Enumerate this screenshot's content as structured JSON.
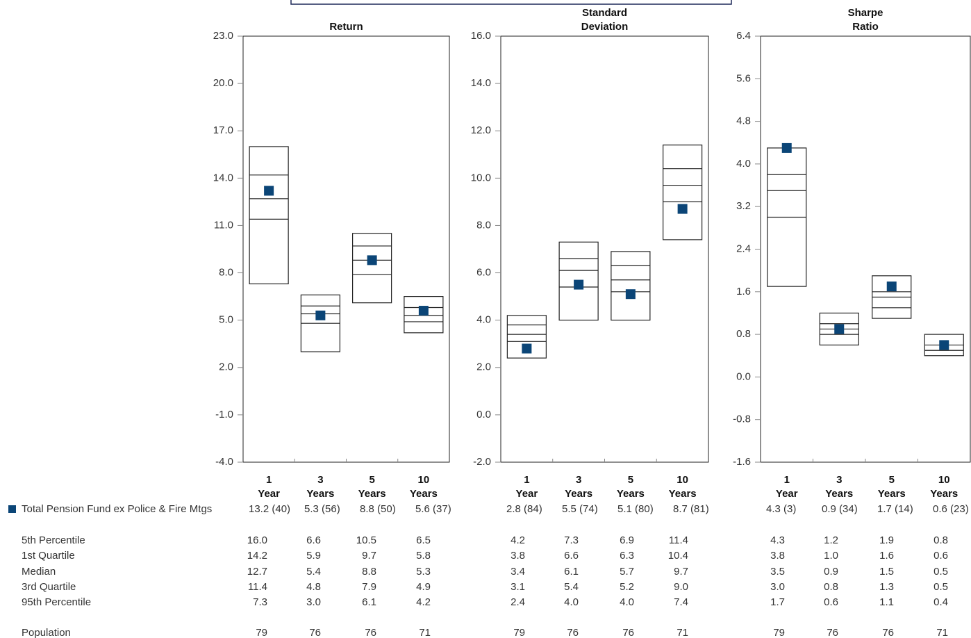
{
  "rows": {
    "fund": "Total Pension Fund ex Police & Fire Mtgs",
    "percentiles": [
      "5th Percentile",
      "1st Quartile",
      "Median",
      "3rd Quartile",
      "95th Percentile"
    ],
    "population": "Population"
  },
  "chart_data": [
    {
      "type": "box",
      "title": "Return",
      "categories": [
        "1 Year",
        "3 Years",
        "5 Years",
        "10 Years"
      ],
      "ylim": [
        -4,
        23
      ],
      "yticks": [
        {
          "value": 23,
          "label": "23.0"
        },
        {
          "value": 20,
          "label": "20.0"
        },
        {
          "value": 17,
          "label": "17.0"
        },
        {
          "value": 14,
          "label": "14.0"
        },
        {
          "value": 11,
          "label": "11.0"
        },
        {
          "value": 8,
          "label": "8.0"
        },
        {
          "value": 5,
          "label": "5.0"
        },
        {
          "value": 2,
          "label": "2.0"
        },
        {
          "value": -1,
          "label": "-1.0"
        },
        {
          "value": -4,
          "label": "-4.0"
        }
      ],
      "series": [
        {
          "values": [
            16.0,
            6.6,
            10.5,
            6.5
          ],
          "value_labels": [
            "16.0",
            "6.6",
            "10.5",
            "6.5"
          ]
        },
        {
          "values": [
            14.2,
            5.9,
            9.7,
            5.8
          ],
          "value_labels": [
            "14.2",
            "5.9",
            "9.7",
            "5.8"
          ]
        },
        {
          "values": [
            12.7,
            5.4,
            8.8,
            5.3
          ],
          "value_labels": [
            "12.7",
            "5.4",
            "8.8",
            "5.3"
          ]
        },
        {
          "values": [
            11.4,
            4.8,
            7.9,
            4.9
          ],
          "value_labels": [
            "11.4",
            "4.8",
            "7.9",
            "4.9"
          ]
        },
        {
          "values": [
            7.3,
            3.0,
            6.1,
            4.2
          ],
          "value_labels": [
            "7.3",
            "3.0",
            "6.1",
            "4.2"
          ]
        }
      ],
      "fund": {
        "color": "#0b4577",
        "values": [
          13.2,
          5.3,
          8.8,
          5.6
        ],
        "value_labels": [
          "13.2 (40)",
          "5.3 (56)",
          "8.8 (50)",
          "5.6 (37)"
        ]
      },
      "population": [
        79,
        76,
        76,
        71
      ]
    },
    {
      "type": "box",
      "title": "Standard Deviation",
      "categories": [
        "1 Year",
        "3 Years",
        "5 Years",
        "10 Years"
      ],
      "ylim": [
        -2,
        16
      ],
      "yticks": [
        {
          "value": 16,
          "label": "16.0"
        },
        {
          "value": 14,
          "label": "14.0"
        },
        {
          "value": 12,
          "label": "12.0"
        },
        {
          "value": 10,
          "label": "10.0"
        },
        {
          "value": 8,
          "label": "8.0"
        },
        {
          "value": 6,
          "label": "6.0"
        },
        {
          "value": 4,
          "label": "4.0"
        },
        {
          "value": 2,
          "label": "2.0"
        },
        {
          "value": 0,
          "label": "0.0"
        },
        {
          "value": -2,
          "label": "-2.0"
        }
      ],
      "series": [
        {
          "values": [
            4.2,
            7.3,
            6.9,
            11.4
          ],
          "value_labels": [
            "4.2",
            "7.3",
            "6.9",
            "11.4"
          ]
        },
        {
          "values": [
            3.8,
            6.6,
            6.3,
            10.4
          ],
          "value_labels": [
            "3.8",
            "6.6",
            "6.3",
            "10.4"
          ]
        },
        {
          "values": [
            3.4,
            6.1,
            5.7,
            9.7
          ],
          "value_labels": [
            "3.4",
            "6.1",
            "5.7",
            "9.7"
          ]
        },
        {
          "values": [
            3.1,
            5.4,
            5.2,
            9.0
          ],
          "value_labels": [
            "3.1",
            "5.4",
            "5.2",
            "9.0"
          ]
        },
        {
          "values": [
            2.4,
            4.0,
            4.0,
            7.4
          ],
          "value_labels": [
            "2.4",
            "4.0",
            "4.0",
            "7.4"
          ]
        }
      ],
      "fund": {
        "color": "#0b4577",
        "values": [
          2.8,
          5.5,
          5.1,
          8.7
        ],
        "value_labels": [
          "2.8 (84)",
          "5.5 (74)",
          "5.1 (80)",
          "8.7 (81)"
        ]
      },
      "population": [
        79,
        76,
        76,
        71
      ]
    },
    {
      "type": "box",
      "title": "Sharpe Ratio",
      "categories": [
        "1 Year",
        "3 Years",
        "5 Years",
        "10 Years"
      ],
      "ylim": [
        -1.6,
        6.4
      ],
      "yticks": [
        6.4,
        5.6,
        4.8,
        {
          "value": 4,
          "label": "4.0"
        },
        3.2,
        2.4,
        1.6,
        0.8,
        {
          "value": 0,
          "label": "0.0"
        },
        -0.8,
        -1.6
      ],
      "series": [
        {
          "values": [
            4.3,
            1.2,
            1.9,
            0.8
          ],
          "value_labels": [
            "4.3",
            "1.2",
            "1.9",
            "0.8"
          ]
        },
        {
          "values": [
            3.8,
            1.0,
            1.6,
            0.6
          ],
          "value_labels": [
            "3.8",
            "1.0",
            "1.6",
            "0.6"
          ]
        },
        {
          "values": [
            3.5,
            0.9,
            1.5,
            0.5
          ],
          "value_labels": [
            "3.5",
            "0.9",
            "1.5",
            "0.5"
          ]
        },
        {
          "values": [
            3.0,
            0.8,
            1.3,
            0.5
          ],
          "value_labels": [
            "3.0",
            "0.8",
            "1.3",
            "0.5"
          ]
        },
        {
          "values": [
            1.7,
            0.6,
            1.1,
            0.4
          ],
          "value_labels": [
            "1.7",
            "0.6",
            "1.1",
            "0.4"
          ]
        }
      ],
      "fund": {
        "color": "#0b4577",
        "values": [
          4.3,
          0.9,
          1.7,
          0.6
        ],
        "value_labels": [
          "4.3 (3)",
          "0.9 (34)",
          "1.7 (14)",
          "0.6 (23)"
        ]
      },
      "population": [
        79,
        76,
        76,
        71
      ]
    }
  ]
}
